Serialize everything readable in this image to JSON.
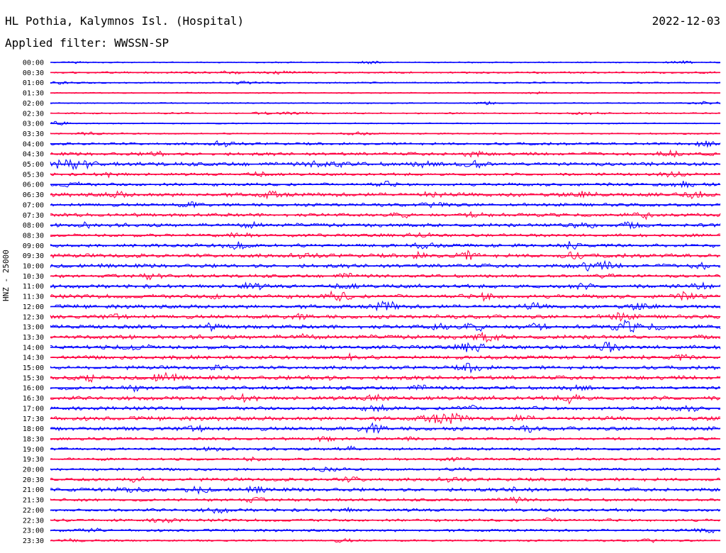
{
  "header": {
    "station": "HL Pothia, Kalymnos Isl. (Hospital)",
    "date": "2022-12-03",
    "filter": "Applied filter: WWSSN-SP"
  },
  "chart_data": {
    "type": "line",
    "ylabel": "HNZ - 25000",
    "xlabel": "",
    "grid": false,
    "colors": [
      "#0000ff",
      "#ff0040"
    ],
    "rows": [
      {
        "label": "00:00",
        "amplitude": 1.0,
        "events": [
          [
            0.05,
            2
          ],
          [
            0.48,
            2
          ],
          [
            0.94,
            2
          ]
        ]
      },
      {
        "label": "00:30",
        "amplitude": 1.5,
        "events": [
          [
            0.27,
            2
          ],
          [
            0.35,
            2
          ]
        ]
      },
      {
        "label": "01:00",
        "amplitude": 1.2,
        "events": [
          [
            0.01,
            2
          ],
          [
            0.29,
            2
          ]
        ]
      },
      {
        "label": "01:30",
        "amplitude": 1.0,
        "events": [
          [
            0.73,
            1
          ]
        ]
      },
      {
        "label": "02:00",
        "amplitude": 1.0,
        "events": [
          [
            0.65,
            2
          ],
          [
            0.98,
            2
          ]
        ]
      },
      {
        "label": "02:30",
        "amplitude": 1.2,
        "events": [
          [
            0.32,
            2
          ],
          [
            0.37,
            2
          ],
          [
            0.8,
            2
          ]
        ]
      },
      {
        "label": "03:00",
        "amplitude": 1.0,
        "events": [
          [
            0.01,
            3
          ]
        ]
      },
      {
        "label": "03:30",
        "amplitude": 1.2,
        "events": [
          [
            0.06,
            2
          ],
          [
            0.46,
            2
          ]
        ]
      },
      {
        "label": "04:00",
        "amplitude": 2.0,
        "events": [
          [
            0.26,
            4
          ],
          [
            0.98,
            3
          ]
        ]
      },
      {
        "label": "04:30",
        "amplitude": 2.5,
        "events": [
          [
            0.16,
            3
          ],
          [
            0.63,
            4
          ],
          [
            0.93,
            4
          ]
        ]
      },
      {
        "label": "05:00",
        "amplitude": 3.0,
        "events": [
          [
            0.02,
            6
          ],
          [
            0.05,
            4
          ],
          [
            0.4,
            3
          ],
          [
            0.43,
            3
          ],
          [
            0.56,
            3
          ],
          [
            0.63,
            6
          ]
        ]
      },
      {
        "label": "05:30",
        "amplitude": 2.2,
        "events": [
          [
            0.09,
            3
          ],
          [
            0.31,
            3
          ],
          [
            0.93,
            3
          ]
        ]
      },
      {
        "label": "06:00",
        "amplitude": 2.5,
        "events": [
          [
            0.03,
            3
          ],
          [
            0.5,
            3
          ],
          [
            0.95,
            3
          ]
        ]
      },
      {
        "label": "06:30",
        "amplitude": 3.0,
        "events": [
          [
            0.1,
            3
          ],
          [
            0.33,
            4
          ],
          [
            0.57,
            3
          ],
          [
            0.8,
            3
          ],
          [
            0.96,
            4
          ]
        ]
      },
      {
        "label": "07:00",
        "amplitude": 2.5,
        "events": [
          [
            0.21,
            3
          ],
          [
            0.58,
            4
          ]
        ]
      },
      {
        "label": "07:30",
        "amplitude": 2.8,
        "events": [
          [
            0.52,
            3
          ],
          [
            0.64,
            3
          ],
          [
            0.89,
            4
          ]
        ]
      },
      {
        "label": "08:00",
        "amplitude": 2.8,
        "events": [
          [
            0.05,
            3
          ],
          [
            0.3,
            3
          ],
          [
            0.79,
            6
          ],
          [
            0.87,
            3
          ]
        ]
      },
      {
        "label": "08:30",
        "amplitude": 2.5,
        "events": [
          [
            0.28,
            3
          ],
          [
            0.55,
            3
          ]
        ]
      },
      {
        "label": "09:00",
        "amplitude": 2.8,
        "events": [
          [
            0.28,
            5
          ],
          [
            0.56,
            3
          ],
          [
            0.78,
            4
          ]
        ]
      },
      {
        "label": "09:30",
        "amplitude": 3.0,
        "events": [
          [
            0.38,
            3
          ],
          [
            0.55,
            3
          ],
          [
            0.62,
            5
          ],
          [
            0.78,
            4
          ]
        ]
      },
      {
        "label": "10:00",
        "amplitude": 3.0,
        "events": [
          [
            0.8,
            5
          ],
          [
            0.83,
            4
          ],
          [
            0.97,
            3
          ]
        ]
      },
      {
        "label": "10:30",
        "amplitude": 2.5,
        "events": [
          [
            0.15,
            3
          ],
          [
            0.44,
            3
          ],
          [
            0.83,
            3
          ]
        ]
      },
      {
        "label": "11:00",
        "amplitude": 3.0,
        "events": [
          [
            0.3,
            4
          ],
          [
            0.44,
            3
          ],
          [
            0.79,
            3
          ],
          [
            0.97,
            3
          ]
        ]
      },
      {
        "label": "11:30",
        "amplitude": 3.2,
        "events": [
          [
            0.25,
            3
          ],
          [
            0.43,
            7
          ],
          [
            0.65,
            5
          ],
          [
            0.95,
            4
          ]
        ]
      },
      {
        "label": "12:00",
        "amplitude": 3.0,
        "events": [
          [
            0.5,
            7
          ],
          [
            0.72,
            3
          ],
          [
            0.88,
            3
          ]
        ]
      },
      {
        "label": "12:30",
        "amplitude": 3.0,
        "events": [
          [
            0.1,
            3
          ],
          [
            0.37,
            3
          ],
          [
            0.85,
            5
          ]
        ]
      },
      {
        "label": "13:00",
        "amplitude": 3.2,
        "events": [
          [
            0.24,
            3
          ],
          [
            0.58,
            4
          ],
          [
            0.63,
            6
          ],
          [
            0.72,
            4
          ],
          [
            0.86,
            8
          ],
          [
            0.9,
            3
          ]
        ]
      },
      {
        "label": "13:30",
        "amplitude": 3.2,
        "events": [
          [
            0.38,
            3
          ],
          [
            0.65,
            6
          ]
        ]
      },
      {
        "label": "14:00",
        "amplitude": 3.2,
        "events": [
          [
            0.13,
            3
          ],
          [
            0.63,
            7
          ],
          [
            0.83,
            7
          ]
        ]
      },
      {
        "label": "14:30",
        "amplitude": 3.0,
        "events": [
          [
            0.2,
            3
          ],
          [
            0.45,
            4
          ],
          [
            0.94,
            3
          ]
        ]
      },
      {
        "label": "15:00",
        "amplitude": 2.8,
        "events": [
          [
            0.26,
            3
          ],
          [
            0.63,
            6
          ]
        ]
      },
      {
        "label": "15:30",
        "amplitude": 3.2,
        "events": [
          [
            0.06,
            4
          ],
          [
            0.17,
            6
          ],
          [
            0.4,
            3
          ]
        ]
      },
      {
        "label": "16:00",
        "amplitude": 2.8,
        "events": [
          [
            0.12,
            3
          ],
          [
            0.55,
            3
          ],
          [
            0.79,
            3
          ]
        ]
      },
      {
        "label": "16:30",
        "amplitude": 3.2,
        "events": [
          [
            0.29,
            4
          ],
          [
            0.49,
            6
          ],
          [
            0.78,
            6
          ]
        ]
      },
      {
        "label": "17:00",
        "amplitude": 3.0,
        "events": [
          [
            0.49,
            4
          ],
          [
            0.62,
            3
          ],
          [
            0.95,
            3
          ]
        ]
      },
      {
        "label": "17:30",
        "amplitude": 3.2,
        "events": [
          [
            0.57,
            5
          ],
          [
            0.6,
            7
          ],
          [
            0.7,
            3
          ]
        ]
      },
      {
        "label": "18:00",
        "amplitude": 3.0,
        "events": [
          [
            0.22,
            4
          ],
          [
            0.48,
            7
          ],
          [
            0.71,
            3
          ]
        ]
      },
      {
        "label": "18:30",
        "amplitude": 2.2,
        "events": [
          [
            0.41,
            3
          ],
          [
            0.55,
            3
          ]
        ]
      },
      {
        "label": "19:00",
        "amplitude": 2.2,
        "events": [
          [
            0.25,
            3
          ],
          [
            0.44,
            3
          ]
        ]
      },
      {
        "label": "19:30",
        "amplitude": 2.0,
        "events": [
          [
            0.3,
            2
          ],
          [
            0.6,
            2
          ]
        ]
      },
      {
        "label": "20:00",
        "amplitude": 2.2,
        "events": [
          [
            0.41,
            3
          ],
          [
            0.62,
            2
          ]
        ]
      },
      {
        "label": "20:30",
        "amplitude": 2.5,
        "events": [
          [
            0.13,
            3
          ],
          [
            0.45,
            3
          ],
          [
            0.6,
            3
          ]
        ]
      },
      {
        "label": "21:00",
        "amplitude": 2.8,
        "events": [
          [
            0.12,
            3
          ],
          [
            0.22,
            4
          ],
          [
            0.31,
            3
          ],
          [
            0.7,
            3
          ]
        ]
      },
      {
        "label": "21:30",
        "amplitude": 2.2,
        "events": [
          [
            0.3,
            3
          ],
          [
            0.69,
            3
          ]
        ]
      },
      {
        "label": "22:00",
        "amplitude": 2.5,
        "events": [
          [
            0.25,
            3
          ],
          [
            0.44,
            2
          ]
        ]
      },
      {
        "label": "22:30",
        "amplitude": 2.2,
        "events": [
          [
            0.17,
            3
          ],
          [
            0.75,
            2
          ]
        ]
      },
      {
        "label": "23:00",
        "amplitude": 2.0,
        "events": [
          [
            0.06,
            2
          ],
          [
            0.98,
            3
          ]
        ]
      },
      {
        "label": "23:30",
        "amplitude": 1.5,
        "events": [
          [
            0.04,
            2
          ],
          [
            0.44,
            2
          ],
          [
            0.9,
            2
          ]
        ]
      }
    ]
  }
}
